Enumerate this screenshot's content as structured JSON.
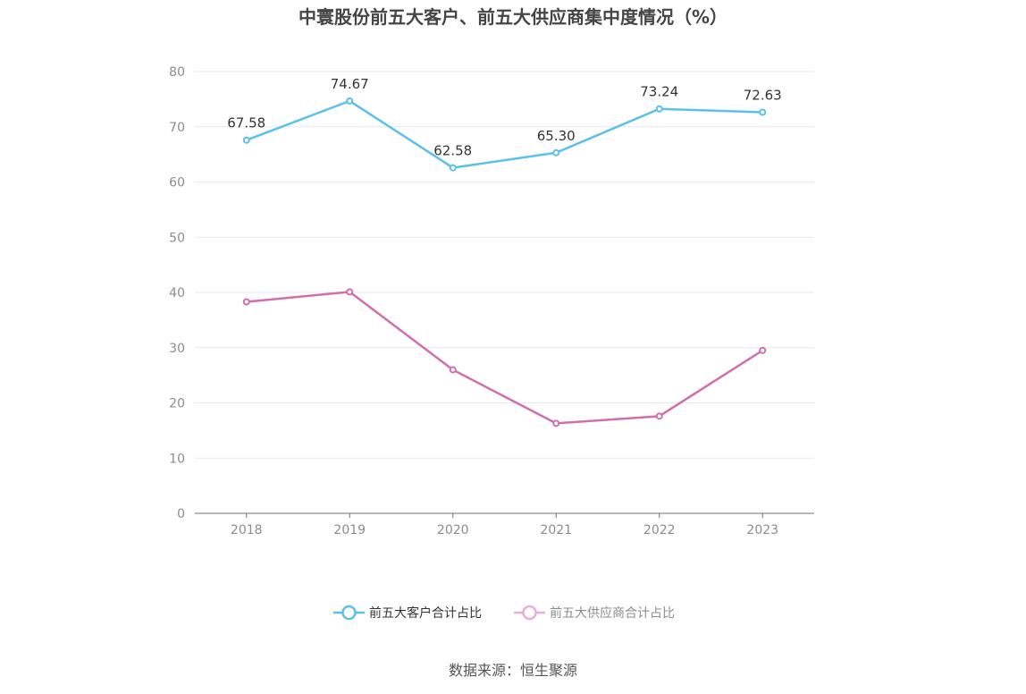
{
  "chart_data": {
    "type": "line",
    "title": "中寰股份前五大客户、前五大供应商集中度情况（%）",
    "xlabel": "",
    "ylabel": "",
    "x": [
      "2018",
      "2019",
      "2020",
      "2021",
      "2022",
      "2023"
    ],
    "ylim": [
      0,
      80
    ],
    "yticks": [
      0,
      10,
      20,
      30,
      40,
      50,
      60,
      70,
      80
    ],
    "grid": true,
    "legend_position": "bottom-center",
    "series": [
      {
        "name": "前五大客户合计占比",
        "color": "#5bc0eb",
        "values": [
          67.58,
          74.67,
          62.58,
          65.3,
          73.24,
          72.63
        ],
        "labels": [
          "67.58",
          "74.67",
          "62.58",
          "65.30",
          "73.24",
          "72.63"
        ],
        "show_labels": true
      },
      {
        "name": "前五大供应商合计占比",
        "color": "#d26ead",
        "values": [
          38.3,
          40.1,
          26.0,
          16.3,
          17.6,
          29.5
        ],
        "show_labels": false
      }
    ]
  },
  "source_text": "数据来源：恒生聚源",
  "colors": {
    "axis": "#6e7079",
    "grid": "#e6e8f2",
    "tick_text": "#8c8c8c",
    "title_text": "#454545",
    "label_text": "#333333"
  }
}
